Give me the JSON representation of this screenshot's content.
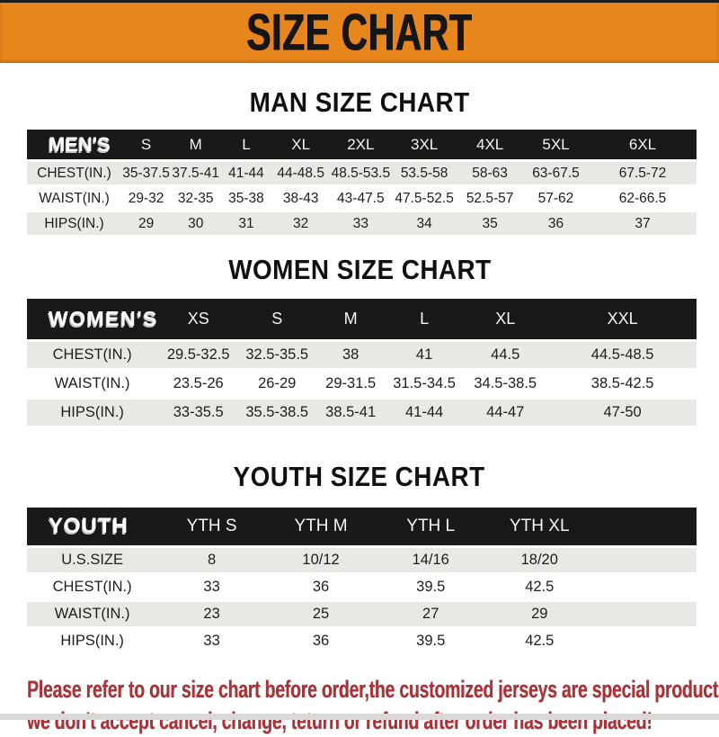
{
  "banner": {
    "title": "SIZE CHART"
  },
  "sections": [
    {
      "heading": "MAN SIZE CHART",
      "table": {
        "label_header": "MEN'S",
        "size_headers": [
          "S",
          "M",
          "L",
          "XL",
          "2XL",
          "3XL",
          "4XL",
          "5XL",
          "6XL"
        ],
        "rows": [
          {
            "label": "CHEST(IN.)",
            "values": [
              "35-37.5",
              "37.5-41",
              "41-44",
              "44-48.5",
              "48.5-53.5",
              "53.5-58",
              "58-63",
              "63-67.5",
              "67.5-72"
            ]
          },
          {
            "label": "WAIST(IN.)",
            "values": [
              "29-32",
              "32-35",
              "35-38",
              "38-43",
              "43-47.5",
              "47.5-52.5",
              "52.5-57",
              "57-62",
              "62-66.5"
            ]
          },
          {
            "label": "HIPS(IN.)",
            "values": [
              "29",
              "30",
              "31",
              "32",
              "33",
              "34",
              "35",
              "36",
              "37"
            ]
          }
        ]
      }
    },
    {
      "heading": "WOMEN SIZE CHART",
      "table": {
        "label_header": "WOMEN'S",
        "size_headers": [
          "XS",
          "S",
          "M",
          "L",
          "XL",
          "XXL"
        ],
        "rows": [
          {
            "label": "CHEST(IN.)",
            "values": [
              "29.5-32.5",
              "32.5-35.5",
              "38",
              "41",
              "44.5",
              "44.5-48.5"
            ]
          },
          {
            "label": "WAIST(IN.)",
            "values": [
              "23.5-26",
              "26-29",
              "29-31.5",
              "31.5-34.5",
              "34.5-38.5",
              "38.5-42.5"
            ]
          },
          {
            "label": "HIPS(IN.)",
            "values": [
              "33-35.5",
              "35.5-38.5",
              "38.5-41",
              "41-44",
              "44-47",
              "47-50"
            ]
          }
        ]
      }
    },
    {
      "heading": "YOUTH SIZE CHART",
      "table": {
        "label_header": "YOUTH",
        "size_headers": [
          "YTH S",
          "YTH M",
          "YTH L",
          "YTH XL"
        ],
        "rows": [
          {
            "label": "U.S.SIZE",
            "values": [
              "8",
              "10/12",
              "14/16",
              "18/20"
            ]
          },
          {
            "label": "CHEST(IN.)",
            "values": [
              "33",
              "36",
              "39.5",
              "42.5"
            ]
          },
          {
            "label": "WAIST(IN.)",
            "values": [
              "23",
              "25",
              "27",
              "29"
            ]
          },
          {
            "label": "HIPS(IN.)",
            "values": [
              "33",
              "36",
              "39.5",
              "42.5"
            ]
          }
        ]
      }
    }
  ],
  "footer": {
    "lines": [
      "Please refer to our size chart before order,the customized jerseys are special products,",
      "we don't accept cancel, change, teturn or refund after order has been placed!"
    ]
  },
  "colors": {
    "banner_bg": "#E8861E",
    "banner_text": "#161616",
    "header_bar_bg": "#191919",
    "row_alt_bg": "#E8E8E5",
    "footer_text": "#A63438"
  }
}
